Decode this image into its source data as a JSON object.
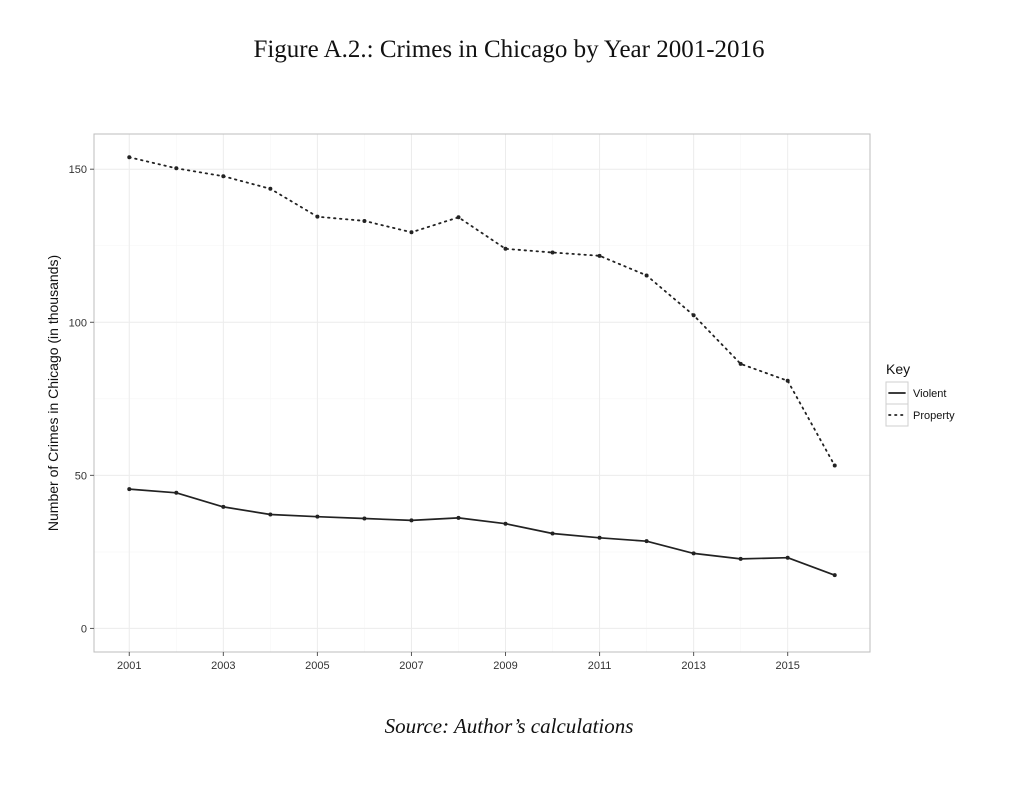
{
  "figure": {
    "title": "Figure A.2.: Crimes in Chicago by Year 2001-2016",
    "source": "Source: Author’s calculations"
  },
  "chart_data": {
    "type": "line",
    "title": "Figure A.2.: Crimes in Chicago by Year 2001-2016",
    "xlabel": "",
    "ylabel": "Number of Crimes in Chicago (in thousands)",
    "xlim": [
      2000.25,
      2016.75
    ],
    "ylim": [
      -7.7,
      161.5
    ],
    "x_ticks": [
      2001,
      2003,
      2005,
      2007,
      2009,
      2011,
      2013,
      2015
    ],
    "y_ticks": [
      0,
      50,
      100,
      150
    ],
    "grid": true,
    "legend": {
      "title": "Key",
      "position": "right"
    },
    "x": [
      2001,
      2002,
      2003,
      2004,
      2005,
      2006,
      2007,
      2008,
      2009,
      2010,
      2011,
      2012,
      2013,
      2014,
      2015,
      2016
    ],
    "series": [
      {
        "name": "Violent",
        "style": "solid",
        "color": "#222222",
        "values": [
          45.5,
          44.3,
          39.7,
          37.2,
          36.5,
          35.9,
          35.3,
          36.1,
          34.2,
          31.0,
          29.6,
          28.5,
          24.5,
          22.7,
          23.1,
          17.4
        ]
      },
      {
        "name": "Property",
        "style": "dotted",
        "color": "#222222",
        "values": [
          153.9,
          150.3,
          147.7,
          143.6,
          134.5,
          133.1,
          129.4,
          134.3,
          124.0,
          122.8,
          121.7,
          115.3,
          102.3,
          86.4,
          80.9,
          53.2
        ]
      }
    ]
  }
}
